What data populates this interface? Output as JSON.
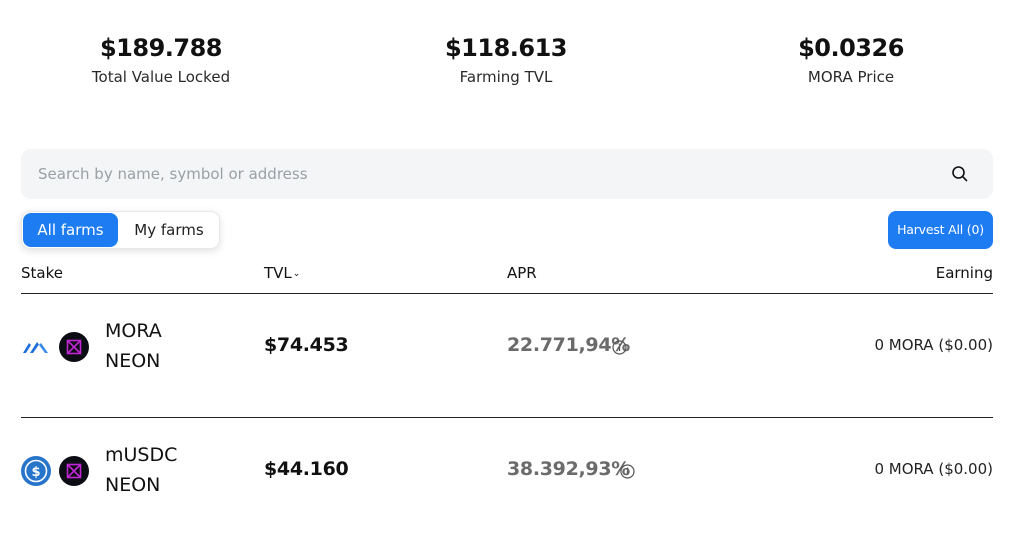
{
  "stats": [
    {
      "value": "$189.788",
      "label": "Total Value Locked"
    },
    {
      "value": "$118.613",
      "label": "Farming TVL"
    },
    {
      "value": "$0.0326",
      "label": "MORA Price"
    }
  ],
  "search": {
    "placeholder": "Search by name, symbol or address",
    "icon": "search-icon"
  },
  "tabs": [
    {
      "label": "All farms",
      "active": true
    },
    {
      "label": "My farms",
      "active": false
    }
  ],
  "harvest_label": "Harvest All (0)",
  "table": {
    "headers": {
      "stake": "Stake",
      "tvl": "TVL",
      "apr": "APR",
      "earning": "Earning"
    },
    "rows": [
      {
        "token_a": "MORA",
        "token_b": "NEON",
        "tvl": "$74.453",
        "apr": "22.771,94%",
        "earning": "0 MORA ($0.00)"
      },
      {
        "token_a": "mUSDC",
        "token_b": "NEON",
        "tvl": "$44.160",
        "apr": "38.392,93%",
        "earning": "0 MORA ($0.00)"
      }
    ]
  },
  "colors": {
    "accent": "#1e7cf2",
    "neon_token": "#c026d3",
    "usdc_token": "#2775ca",
    "mora_token": "#1e6fd9"
  }
}
